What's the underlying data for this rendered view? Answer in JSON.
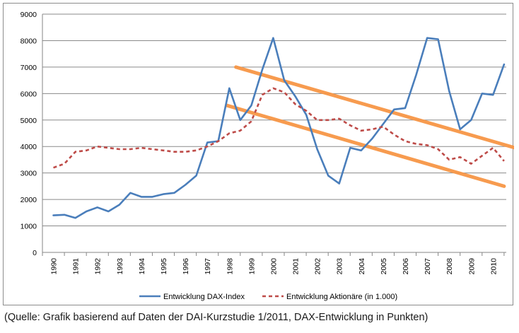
{
  "chart_data": {
    "type": "line",
    "xlabel": "",
    "ylabel": "",
    "ylim": [
      0,
      9000
    ],
    "y_ticks": [
      0,
      1000,
      2000,
      3000,
      4000,
      5000,
      6000,
      7000,
      8000,
      9000
    ],
    "y_tick_labels": [
      "0",
      "1000",
      "2000",
      "3000",
      "4000",
      "5000",
      "6000",
      "7000",
      "8000",
      "9000"
    ],
    "x_tick_labels": [
      "1990",
      "1991",
      "1992",
      "1993",
      "1994",
      "1995",
      "1996",
      "1997",
      "1998",
      "1999",
      "2000",
      "2001",
      "2002",
      "2003",
      "2004",
      "2005",
      "2006",
      "2007",
      "2008",
      "2009",
      "2010"
    ],
    "grid": "horizontal",
    "legend_position": "bottom",
    "series": [
      {
        "name": "Entwicklung DAX-Index",
        "style": "solid",
        "color": "#4a7ebb",
        "x": [
          1990.0,
          1990.5,
          1991.0,
          1991.5,
          1992.0,
          1992.5,
          1993.0,
          1993.5,
          1994.0,
          1994.5,
          1995.0,
          1995.5,
          1996.0,
          1996.5,
          1997.0,
          1997.5,
          1998.0,
          1998.5,
          1999.0,
          1999.5,
          2000.0,
          2000.5,
          2001.0,
          2001.5,
          2002.0,
          2002.5,
          2003.0,
          2003.5,
          2004.0,
          2004.5,
          2005.0,
          2005.5,
          2006.0,
          2006.5,
          2007.0,
          2007.5,
          2008.0,
          2008.5,
          2009.0,
          2009.5,
          2010.0,
          2010.5
        ],
        "y": [
          1400,
          1420,
          1300,
          1550,
          1700,
          1550,
          1800,
          2250,
          2100,
          2100,
          2200,
          2250,
          2550,
          2900,
          4150,
          4200,
          6200,
          5000,
          5550,
          6900,
          8100,
          6500,
          5900,
          5200,
          3900,
          2900,
          2600,
          3950,
          3850,
          4300,
          4850,
          5400,
          5450,
          6700,
          8100,
          8050,
          6100,
          4650,
          5000,
          6000,
          5950,
          7100
        ]
      },
      {
        "name": "Entwicklung Aktionäre (in 1.000)",
        "style": "dashed",
        "color": "#be4b48",
        "x": [
          1990.0,
          1990.5,
          1991.0,
          1991.5,
          1992.0,
          1992.5,
          1993.0,
          1993.5,
          1994.0,
          1994.5,
          1995.0,
          1995.5,
          1996.0,
          1996.5,
          1997.0,
          1997.5,
          1998.0,
          1998.5,
          1999.0,
          1999.5,
          2000.0,
          2000.5,
          2001.0,
          2001.5,
          2002.0,
          2002.5,
          2003.0,
          2003.5,
          2004.0,
          2004.5,
          2005.0,
          2005.5,
          2006.0,
          2006.5,
          2007.0,
          2007.5,
          2008.0,
          2008.5,
          2009.0,
          2009.5,
          2010.0,
          2010.5
        ],
        "y": [
          3200,
          3350,
          3800,
          3850,
          4000,
          3950,
          3900,
          3900,
          3950,
          3900,
          3850,
          3800,
          3800,
          3850,
          4000,
          4200,
          4500,
          4600,
          4950,
          5950,
          6200,
          6050,
          5600,
          5350,
          5000,
          5000,
          5050,
          4800,
          4600,
          4650,
          4750,
          4450,
          4200,
          4100,
          4050,
          3900,
          3500,
          3600,
          3350,
          3650,
          3950,
          3450
        ]
      }
    ],
    "trend_lines": [
      {
        "color": "#f79646",
        "x": [
          1998.3,
          2011.0
        ],
        "y": [
          7000,
          3950
        ]
      },
      {
        "color": "#f79646",
        "x": [
          1997.9,
          2010.5
        ],
        "y": [
          5550,
          2500
        ]
      }
    ]
  },
  "caption": "(Quelle: Grafik basierend auf Daten der DAI-Kurzstudie 1/2011, DAX-Entwicklung in Punkten)"
}
